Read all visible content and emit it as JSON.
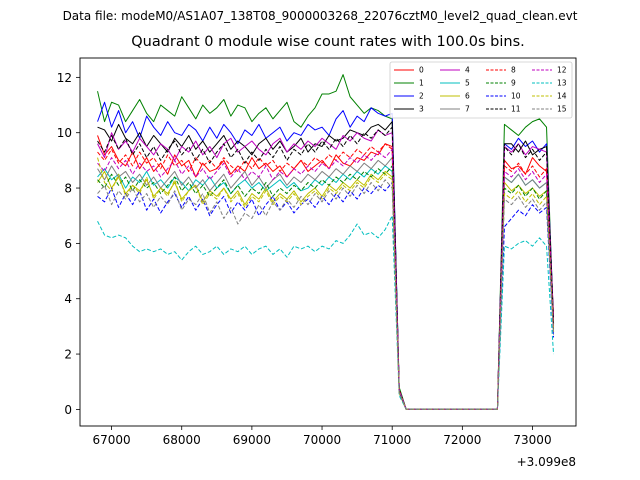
{
  "figure": {
    "suptitle": "Data file: modeM0/AS1A07_138T08_9000003268_22076cztM0_level2_quad_clean.evt"
  },
  "chart_data": {
    "type": "line",
    "title": "Quadrant 0 module wise count rates with 100.0s bins.",
    "xlabel": "",
    "ylabel": "",
    "x_offset_label": "+3.099e8",
    "xlim": [
      66550,
      73620
    ],
    "ylim": [
      -0.6,
      12.7
    ],
    "xticks": [
      67000,
      68000,
      69000,
      70000,
      71000,
      72000,
      73000
    ],
    "xtick_labels": [
      "67000",
      "68000",
      "69000",
      "70000",
      "71000",
      "72000",
      "73000"
    ],
    "yticks": [
      0,
      2,
      4,
      6,
      8,
      10,
      12
    ],
    "ytick_labels": [
      "0",
      "2",
      "4",
      "6",
      "8",
      "10",
      "12"
    ],
    "grid": false,
    "legend_position": "top-right",
    "x": [
      66800,
      66900,
      67000,
      67100,
      67200,
      67300,
      67400,
      67500,
      67600,
      67700,
      67800,
      67900,
      68000,
      68100,
      68200,
      68300,
      68400,
      68500,
      68600,
      68700,
      68800,
      68900,
      69000,
      69100,
      69200,
      69300,
      69400,
      69500,
      69600,
      69700,
      69800,
      69900,
      70000,
      70100,
      70200,
      70300,
      70400,
      70500,
      70600,
      70700,
      70800,
      70900,
      71000,
      71100,
      71200,
      71300,
      71400,
      71500,
      71600,
      71700,
      71800,
      71900,
      72000,
      72100,
      72200,
      72300,
      72400,
      72500,
      72600,
      72700,
      72800,
      72900,
      73000,
      73100,
      73200,
      73300
    ],
    "series": [
      {
        "name": "0",
        "color": "#ff0000",
        "style": "solid",
        "values": [
          9.9,
          9.2,
          9.5,
          9.0,
          8.8,
          9.3,
          8.7,
          9.1,
          8.6,
          8.9,
          8.5,
          9.2,
          8.8,
          9.0,
          8.4,
          8.9,
          8.6,
          8.7,
          9.0,
          8.5,
          8.8,
          8.6,
          9.1,
          8.7,
          8.9,
          8.6,
          8.8,
          8.4,
          8.7,
          9.0,
          8.6,
          8.8,
          9.0,
          8.7,
          9.2,
          8.9,
          8.8,
          9.1,
          9.0,
          9.3,
          9.2,
          9.6,
          9.5,
          0.7,
          0.0,
          0.0,
          0.0,
          0.0,
          0.0,
          0.0,
          0.0,
          0.0,
          0.0,
          0.0,
          0.0,
          0.0,
          0.0,
          0.0,
          9.0,
          8.7,
          8.8,
          8.5,
          9.1,
          8.8,
          8.6,
          3.4
        ]
      },
      {
        "name": "1",
        "color": "#008000",
        "style": "solid",
        "values": [
          11.5,
          10.4,
          11.1,
          11.0,
          10.4,
          10.8,
          11.2,
          10.7,
          10.4,
          11.0,
          10.8,
          10.6,
          11.3,
          10.9,
          10.5,
          11.0,
          10.7,
          10.9,
          11.2,
          10.6,
          11.0,
          10.9,
          10.4,
          10.7,
          10.9,
          10.5,
          10.8,
          11.1,
          10.4,
          10.2,
          10.6,
          10.9,
          11.4,
          11.4,
          11.5,
          12.1,
          11.3,
          11.0,
          10.7,
          10.9,
          10.8,
          10.6,
          10.5,
          0.8,
          0.0,
          0.0,
          0.0,
          0.0,
          0.0,
          0.0,
          0.0,
          0.0,
          0.0,
          0.0,
          0.0,
          0.0,
          0.0,
          0.0,
          10.3,
          10.1,
          9.9,
          10.2,
          10.4,
          10.5,
          10.2,
          3.0
        ]
      },
      {
        "name": "2",
        "color": "#0000ff",
        "style": "solid",
        "values": [
          10.4,
          11.1,
          10.2,
          10.8,
          10.0,
          10.4,
          9.8,
          10.6,
          10.2,
          9.9,
          10.4,
          10.0,
          9.9,
          10.3,
          10.1,
          9.7,
          10.2,
          9.8,
          10.3,
          10.0,
          9.6,
          10.1,
          9.9,
          10.3,
          9.8,
          10.0,
          10.2,
          9.7,
          10.0,
          9.9,
          10.3,
          10.1,
          10.2,
          9.9,
          10.5,
          10.8,
          10.2,
          10.6,
          10.4,
          10.9,
          10.7,
          10.6,
          10.7,
          0.7,
          0.0,
          0.0,
          0.0,
          0.0,
          0.0,
          0.0,
          0.0,
          0.0,
          0.0,
          0.0,
          0.0,
          0.0,
          0.0,
          0.0,
          9.6,
          9.4,
          9.8,
          9.5,
          9.7,
          9.3,
          9.6,
          3.2
        ]
      },
      {
        "name": "3",
        "color": "#000000",
        "style": "solid",
        "values": [
          10.2,
          10.1,
          9.7,
          10.3,
          9.8,
          9.6,
          10.0,
          9.5,
          9.9,
          9.6,
          9.3,
          9.8,
          9.5,
          9.9,
          9.4,
          9.7,
          9.3,
          9.6,
          9.9,
          9.4,
          9.7,
          9.5,
          9.2,
          9.6,
          9.8,
          9.4,
          9.7,
          9.3,
          9.5,
          9.8,
          9.3,
          9.6,
          9.5,
          9.9,
          9.7,
          9.8,
          10.1,
          10.0,
          9.9,
          10.2,
          10.3,
          10.1,
          10.4,
          0.7,
          0.0,
          0.0,
          0.0,
          0.0,
          0.0,
          0.0,
          0.0,
          0.0,
          0.0,
          0.0,
          0.0,
          0.0,
          0.0,
          0.0,
          9.6,
          9.6,
          9.3,
          9.7,
          9.2,
          9.4,
          9.5,
          3.1
        ]
      },
      {
        "name": "4",
        "color": "#bf00bf",
        "style": "solid",
        "values": [
          9.6,
          9.1,
          10.0,
          9.4,
          9.7,
          9.3,
          9.8,
          9.5,
          9.2,
          9.6,
          9.4,
          9.0,
          9.5,
          9.3,
          9.7,
          9.2,
          9.5,
          9.1,
          9.6,
          9.8,
          9.3,
          9.5,
          9.7,
          9.4,
          9.2,
          9.6,
          9.8,
          9.3,
          9.6,
          9.4,
          9.7,
          9.5,
          9.8,
          9.6,
          9.4,
          9.9,
          9.7,
          10.0,
          9.8,
          9.7,
          10.1,
          9.9,
          10.0,
          0.7,
          0.0,
          0.0,
          0.0,
          0.0,
          0.0,
          0.0,
          0.0,
          0.0,
          0.0,
          0.0,
          0.0,
          0.0,
          0.0,
          0.0,
          9.5,
          9.3,
          9.6,
          9.2,
          9.5,
          9.4,
          9.3,
          3.1
        ]
      },
      {
        "name": "5",
        "color": "#00bfbf",
        "style": "solid",
        "values": [
          8.4,
          8.7,
          8.3,
          8.5,
          8.0,
          8.4,
          8.2,
          8.6,
          8.1,
          8.3,
          8.0,
          8.4,
          8.2,
          7.9,
          8.3,
          8.1,
          8.4,
          8.0,
          8.2,
          7.8,
          8.1,
          8.3,
          8.0,
          8.2,
          7.9,
          8.1,
          8.3,
          8.0,
          8.2,
          7.9,
          8.0,
          8.3,
          8.1,
          8.4,
          8.2,
          8.5,
          8.3,
          8.6,
          8.4,
          8.7,
          8.5,
          8.8,
          8.6,
          0.6,
          0.0,
          0.0,
          0.0,
          0.0,
          0.0,
          0.0,
          0.0,
          0.0,
          0.0,
          0.0,
          0.0,
          0.0,
          0.0,
          0.0,
          8.4,
          8.2,
          8.5,
          8.1,
          8.3,
          8.0,
          8.2,
          2.8
        ]
      },
      {
        "name": "6",
        "color": "#bfbf00",
        "style": "solid",
        "values": [
          8.2,
          8.6,
          8.0,
          8.4,
          7.8,
          8.1,
          7.9,
          8.3,
          7.7,
          8.0,
          7.8,
          8.2,
          7.6,
          7.9,
          8.1,
          7.5,
          7.9,
          7.7,
          8.0,
          7.6,
          7.9,
          7.4,
          7.8,
          7.6,
          8.0,
          7.5,
          7.8,
          7.6,
          7.9,
          7.5,
          7.8,
          8.0,
          7.7,
          8.1,
          7.9,
          8.2,
          8.0,
          8.3,
          8.1,
          8.5,
          8.3,
          8.6,
          8.4,
          0.6,
          0.0,
          0.0,
          0.0,
          0.0,
          0.0,
          0.0,
          0.0,
          0.0,
          0.0,
          0.0,
          0.0,
          0.0,
          0.0,
          0.0,
          8.2,
          7.9,
          8.1,
          7.8,
          8.0,
          7.7,
          7.9,
          2.9
        ]
      },
      {
        "name": "7",
        "color": "#808080",
        "style": "solid",
        "values": [
          8.7,
          8.3,
          8.8,
          8.4,
          8.6,
          8.2,
          8.5,
          8.1,
          8.4,
          8.0,
          8.3,
          8.6,
          8.1,
          8.4,
          8.0,
          8.3,
          7.9,
          8.2,
          8.5,
          8.0,
          8.3,
          8.6,
          8.1,
          8.4,
          8.0,
          8.3,
          8.5,
          8.1,
          8.4,
          8.2,
          8.5,
          8.3,
          8.6,
          8.4,
          8.7,
          8.5,
          8.8,
          8.6,
          8.9,
          8.7,
          9.0,
          8.8,
          9.1,
          0.6,
          0.0,
          0.0,
          0.0,
          0.0,
          0.0,
          0.0,
          0.0,
          0.0,
          0.0,
          0.0,
          0.0,
          0.0,
          0.0,
          0.0,
          8.4,
          8.2,
          8.5,
          8.1,
          8.3,
          8.0,
          8.2,
          2.9
        ]
      },
      {
        "name": "8",
        "color": "#ff0000",
        "style": "dashed",
        "values": [
          9.3,
          9.0,
          9.4,
          8.9,
          9.2,
          8.8,
          9.3,
          8.9,
          9.1,
          8.7,
          9.2,
          8.8,
          9.0,
          8.6,
          9.1,
          8.8,
          9.0,
          8.7,
          9.1,
          8.8,
          8.6,
          9.0,
          8.7,
          9.1,
          8.8,
          9.0,
          8.6,
          8.9,
          8.7,
          9.0,
          8.8,
          9.1,
          8.9,
          9.2,
          9.0,
          9.3,
          9.1,
          9.4,
          9.2,
          9.5,
          9.3,
          9.6,
          9.4,
          0.7,
          0.0,
          0.0,
          0.0,
          0.0,
          0.0,
          0.0,
          0.0,
          0.0,
          0.0,
          0.0,
          0.0,
          0.0,
          0.0,
          0.0,
          8.8,
          8.6,
          8.9,
          8.5,
          8.8,
          8.4,
          8.7,
          3.0
        ]
      },
      {
        "name": "9",
        "color": "#008000",
        "style": "dashed",
        "values": [
          8.3,
          8.0,
          8.5,
          8.1,
          8.4,
          7.9,
          8.3,
          8.0,
          8.2,
          7.8,
          8.1,
          8.4,
          7.9,
          8.2,
          7.8,
          8.1,
          7.7,
          8.0,
          8.3,
          7.8,
          8.1,
          7.7,
          8.0,
          7.8,
          8.2,
          7.7,
          8.0,
          7.8,
          8.1,
          7.9,
          8.2,
          8.0,
          8.3,
          8.1,
          8.4,
          8.2,
          8.5,
          8.3,
          8.6,
          8.4,
          8.7,
          8.5,
          8.8,
          0.6,
          0.0,
          0.0,
          0.0,
          0.0,
          0.0,
          0.0,
          0.0,
          0.0,
          0.0,
          0.0,
          0.0,
          0.0,
          0.0,
          0.0,
          8.0,
          7.8,
          8.1,
          7.7,
          8.0,
          7.6,
          7.9,
          2.8
        ]
      },
      {
        "name": "10",
        "color": "#0000ff",
        "style": "dashed",
        "values": [
          7.7,
          7.5,
          8.0,
          7.3,
          7.8,
          7.4,
          7.9,
          7.2,
          7.6,
          7.1,
          7.5,
          7.8,
          7.3,
          7.7,
          7.2,
          7.6,
          7.0,
          7.4,
          7.7,
          7.1,
          7.5,
          7.2,
          7.6,
          7.0,
          7.4,
          7.7,
          7.2,
          7.5,
          7.1,
          7.4,
          7.6,
          7.3,
          7.7,
          7.4,
          7.8,
          7.5,
          7.9,
          7.6,
          8.0,
          7.8,
          8.1,
          7.9,
          8.2,
          0.6,
          0.0,
          0.0,
          0.0,
          0.0,
          0.0,
          0.0,
          0.0,
          0.0,
          0.0,
          0.0,
          0.0,
          0.0,
          0.0,
          0.0,
          6.6,
          6.9,
          7.2,
          7.0,
          7.4,
          7.1,
          7.3,
          2.6
        ]
      },
      {
        "name": "11",
        "color": "#000000",
        "style": "dashed",
        "values": [
          9.7,
          9.3,
          9.9,
          9.4,
          9.8,
          9.2,
          9.6,
          9.1,
          9.5,
          9.0,
          9.4,
          9.7,
          9.2,
          9.5,
          9.0,
          9.4,
          8.9,
          9.3,
          9.6,
          9.1,
          9.4,
          8.9,
          9.3,
          9.0,
          9.4,
          9.1,
          9.5,
          9.0,
          9.4,
          9.2,
          9.6,
          9.3,
          9.7,
          9.4,
          9.8,
          9.5,
          9.9,
          9.6,
          10.0,
          9.8,
          10.1,
          9.9,
          10.2,
          0.7,
          0.0,
          0.0,
          0.0,
          0.0,
          0.0,
          0.0,
          0.0,
          0.0,
          0.0,
          0.0,
          0.0,
          0.0,
          0.0,
          0.0,
          9.5,
          9.2,
          9.6,
          9.1,
          9.4,
          9.0,
          9.3,
          3.1
        ]
      },
      {
        "name": "12",
        "color": "#bf00bf",
        "style": "dashed",
        "values": [
          8.9,
          8.6,
          9.1,
          8.7,
          9.0,
          8.5,
          8.9,
          8.6,
          8.8,
          8.4,
          8.7,
          9.0,
          8.5,
          8.8,
          8.4,
          8.7,
          8.3,
          8.6,
          8.9,
          8.4,
          8.7,
          8.3,
          8.6,
          8.4,
          8.8,
          8.3,
          8.6,
          8.4,
          8.7,
          8.5,
          8.8,
          8.6,
          8.9,
          8.7,
          9.0,
          8.8,
          9.1,
          8.9,
          9.2,
          9.0,
          9.3,
          9.1,
          9.4,
          0.7,
          0.0,
          0.0,
          0.0,
          0.0,
          0.0,
          0.0,
          0.0,
          0.0,
          0.0,
          0.0,
          0.0,
          0.0,
          0.0,
          0.0,
          8.6,
          8.4,
          8.7,
          8.3,
          8.6,
          8.2,
          8.5,
          2.9
        ]
      },
      {
        "name": "13",
        "color": "#00bfbf",
        "style": "dashed",
        "values": [
          6.8,
          6.3,
          6.2,
          6.3,
          6.2,
          5.9,
          5.7,
          5.8,
          5.7,
          5.8,
          5.6,
          5.7,
          5.4,
          5.7,
          5.9,
          5.6,
          5.7,
          5.9,
          5.6,
          5.8,
          5.7,
          5.9,
          5.6,
          5.8,
          5.9,
          5.6,
          5.8,
          5.5,
          5.9,
          5.8,
          5.9,
          5.7,
          5.9,
          5.8,
          6.1,
          6.0,
          6.3,
          6.7,
          6.3,
          6.4,
          6.2,
          6.5,
          7.0,
          0.5,
          0.0,
          0.0,
          0.0,
          0.0,
          0.0,
          0.0,
          0.0,
          0.0,
          0.0,
          0.0,
          0.0,
          0.0,
          0.0,
          0.0,
          5.9,
          5.8,
          6.0,
          6.1,
          5.9,
          6.2,
          5.9,
          2.0
        ]
      },
      {
        "name": "14",
        "color": "#bfbf00",
        "style": "dashed",
        "values": [
          9.1,
          8.2,
          7.9,
          8.5,
          7.7,
          8.1,
          7.8,
          8.4,
          7.6,
          8.0,
          7.7,
          8.3,
          7.5,
          7.9,
          8.1,
          7.4,
          7.8,
          7.6,
          8.0,
          7.5,
          7.8,
          7.3,
          7.7,
          7.5,
          7.9,
          7.4,
          7.7,
          7.5,
          7.8,
          7.4,
          7.7,
          7.9,
          7.6,
          8.0,
          7.8,
          8.1,
          7.9,
          8.2,
          8.0,
          8.4,
          8.2,
          8.5,
          8.3,
          0.6,
          0.0,
          0.0,
          0.0,
          0.0,
          0.0,
          0.0,
          0.0,
          0.0,
          0.0,
          0.0,
          0.0,
          0.0,
          0.0,
          0.0,
          7.8,
          7.6,
          7.9,
          7.5,
          7.8,
          7.4,
          7.7,
          2.8
        ]
      },
      {
        "name": "15",
        "color": "#808080",
        "style": "dashed",
        "values": [
          7.8,
          8.1,
          7.4,
          7.9,
          7.6,
          8.0,
          7.5,
          7.8,
          7.3,
          7.7,
          7.4,
          7.9,
          7.2,
          7.6,
          7.4,
          7.8,
          7.1,
          7.5,
          6.9,
          7.3,
          6.7,
          7.1,
          6.9,
          7.4,
          7.0,
          7.5,
          7.2,
          7.6,
          7.3,
          7.7,
          7.4,
          7.8,
          7.5,
          7.9,
          7.6,
          8.0,
          7.7,
          8.1,
          7.8,
          8.2,
          7.9,
          8.3,
          8.0,
          0.6,
          0.0,
          0.0,
          0.0,
          0.0,
          0.0,
          0.0,
          0.0,
          0.0,
          0.0,
          0.0,
          0.0,
          0.0,
          0.0,
          0.0,
          7.6,
          7.4,
          7.7,
          7.3,
          7.6,
          7.2,
          7.5,
          2.7
        ]
      }
    ]
  }
}
